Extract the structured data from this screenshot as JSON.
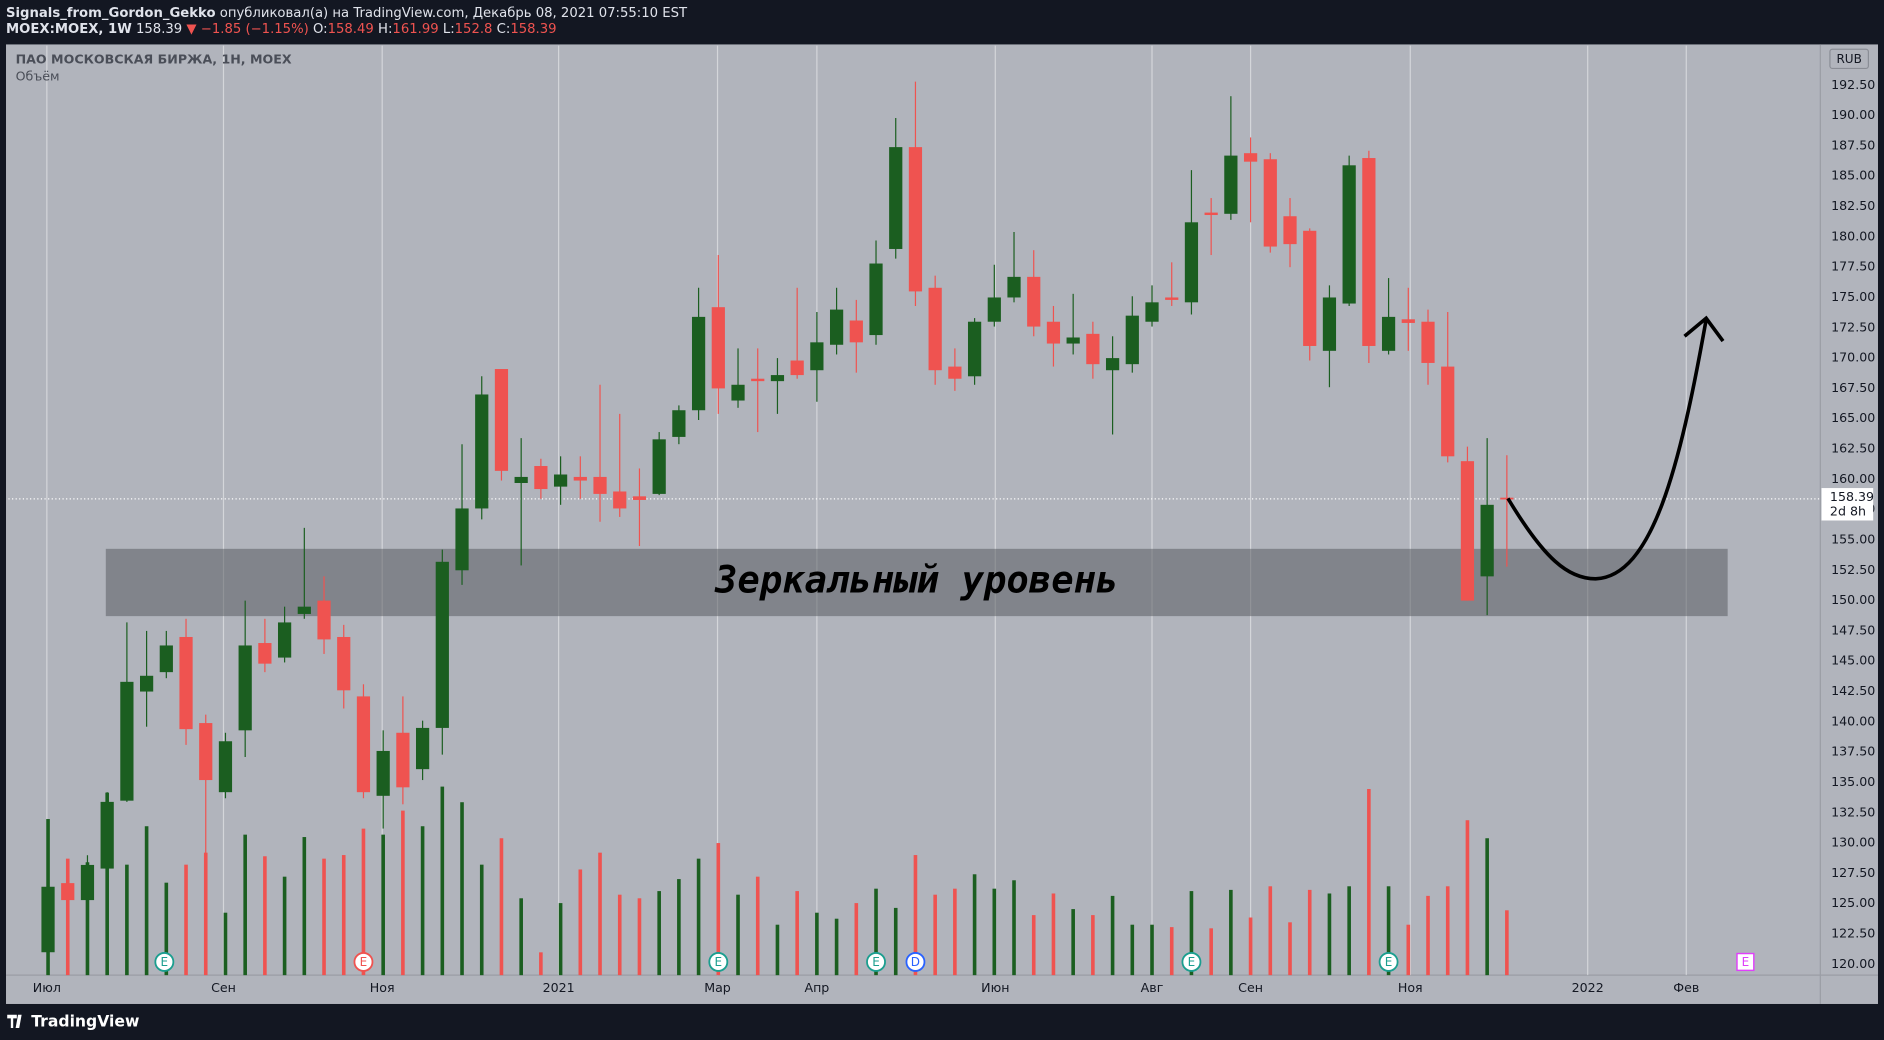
{
  "header": {
    "author": "Signals_from_Gordon_Gekko",
    "published": "опубликовал(а) на TradingView.com, Декабрь 08, 2021 07:55:10 EST",
    "symbol": "MOEX:MOEX, 1W",
    "change": "▼ −1.85 (−1.15%)",
    "o_label": "O:",
    "h_label": "H:",
    "l_label": "L:",
    "c_label": "C:",
    "currency": "RUB",
    "countdown": "2d 8h",
    "brand": "TradingView"
  },
  "chart_data": {
    "type": "candlestick",
    "title": "ПАО МОСКОВСКАЯ БИРЖА, 1Н, MOEX",
    "subtitle": "Объём",
    "up_color": "#1b5e20",
    "down_color": "#ef5350",
    "grid": true,
    "x": [
      0,
      1,
      2,
      3,
      4,
      5,
      6,
      7,
      8,
      9,
      10,
      11,
      12,
      13,
      14,
      15,
      16,
      17,
      18,
      19,
      20,
      21,
      22,
      23,
      24,
      25,
      26,
      27,
      28,
      29,
      30,
      31,
      32,
      33,
      34,
      35,
      36,
      37,
      38,
      39,
      40,
      41,
      42,
      43,
      44,
      45,
      46,
      47,
      48,
      49,
      50,
      51,
      52,
      53,
      54,
      55,
      56,
      57,
      58,
      59,
      60,
      61,
      62,
      63,
      64,
      65,
      66,
      67,
      68,
      69,
      70,
      71,
      72,
      73,
      74
    ],
    "open": [
      121,
      126.7,
      125.3,
      127.9,
      133.5,
      142.5,
      144.1,
      147.0,
      139.9,
      134.2,
      139.3,
      146.5,
      145.3,
      148.9,
      150.0,
      147.0,
      142.1,
      133.9,
      139.1,
      136.1,
      139.5,
      152.5,
      157.6,
      169.1,
      159.7,
      161.1,
      159.4,
      160.2,
      160.2,
      159.0,
      158.6,
      158.8,
      163.5,
      165.7,
      174.2,
      166.5,
      168.3,
      168.1,
      169.8,
      169.0,
      171.1,
      173.1,
      171.9,
      179.0,
      187.4,
      175.8,
      169.3,
      168.5,
      173.0,
      175.0,
      176.7,
      173.0,
      171.2,
      172.0,
      169.0,
      169.5,
      173.0,
      175.0,
      174.6,
      182.0,
      181.9,
      186.9,
      186.4,
      181.7,
      180.5,
      170.6,
      174.5,
      186.5,
      170.6,
      173.2,
      173.0,
      169.3,
      161.5,
      152.0,
      158.49
    ],
    "high": [
      127,
      128.6,
      129.0,
      134.2,
      148.2,
      147.5,
      147.5,
      148.5,
      140.6,
      139.1,
      150.0,
      148.5,
      149.5,
      156.0,
      152.0,
      148.0,
      143.1,
      139.3,
      142.1,
      140.1,
      154.2,
      162.9,
      168.5,
      169.1,
      163.4,
      161.7,
      161.9,
      161.9,
      167.8,
      165.4,
      160.9,
      163.9,
      166.1,
      175.8,
      178.5,
      170.8,
      170.8,
      170.0,
      175.8,
      173.8,
      175.8,
      174.8,
      179.7,
      189.8,
      192.8,
      176.8,
      170.8,
      173.3,
      177.7,
      180.4,
      178.9,
      174.3,
      175.3,
      173.0,
      171.8,
      175.1,
      176.0,
      177.9,
      185.5,
      183.2,
      191.6,
      188.2,
      186.9,
      183.2,
      180.7,
      176.0,
      186.7,
      187.1,
      176.6,
      175.8,
      174.0,
      173.8,
      162.7,
      163.4,
      161.99
    ],
    "low": [
      119.5,
      124.3,
      125.1,
      127.4,
      133.4,
      139.6,
      143.6,
      138.1,
      119.5,
      133.7,
      137.1,
      144.1,
      144.9,
      148.5,
      145.6,
      141.1,
      133.7,
      131.2,
      133.2,
      135.2,
      137.3,
      151.3,
      156.7,
      159.9,
      152.9,
      158.4,
      157.9,
      158.4,
      156.5,
      156.9,
      154.5,
      158.7,
      162.9,
      164.9,
      165.4,
      165.9,
      163.9,
      165.4,
      168.3,
      166.4,
      170.3,
      168.8,
      171.1,
      178.2,
      174.3,
      167.8,
      167.3,
      167.8,
      172.6,
      174.6,
      171.8,
      169.3,
      170.3,
      168.3,
      163.7,
      168.8,
      172.6,
      174.3,
      173.6,
      178.5,
      181.4,
      181.2,
      178.7,
      177.5,
      169.8,
      167.6,
      174.3,
      169.6,
      170.3,
      170.6,
      167.8,
      161.4,
      150.0,
      148.8,
      152.8
    ],
    "close": [
      126.4,
      125.3,
      128.2,
      133.4,
      143.3,
      143.8,
      146.3,
      139.4,
      135.2,
      138.4,
      146.3,
      144.8,
      148.2,
      149.5,
      146.8,
      142.6,
      134.2,
      137.6,
      134.6,
      139.5,
      153.2,
      157.6,
      167.0,
      160.7,
      160.2,
      159.2,
      160.4,
      159.9,
      158.8,
      157.6,
      158.3,
      163.3,
      165.7,
      173.4,
      167.5,
      167.8,
      168.1,
      168.6,
      168.6,
      171.3,
      174.0,
      171.3,
      177.8,
      187.4,
      175.5,
      169.0,
      168.3,
      173.0,
      175.0,
      176.7,
      172.6,
      171.2,
      171.7,
      169.5,
      170.0,
      173.5,
      174.6,
      174.8,
      181.2,
      181.8,
      186.7,
      186.2,
      179.2,
      179.4,
      171.0,
      175.0,
      185.9,
      171.0,
      173.4,
      172.9,
      169.6,
      161.9,
      150.0,
      157.9,
      158.39
    ],
    "volume": [
      130,
      97,
      94,
      152,
      92,
      124,
      77,
      92,
      102,
      52,
      117,
      99,
      82,
      115,
      97,
      100,
      122,
      117,
      137,
      124,
      157,
      144,
      92,
      114,
      64,
      19,
      60,
      88,
      102,
      67,
      64,
      70,
      80,
      97,
      110,
      67,
      82,
      42,
      70,
      52,
      47,
      60,
      72,
      56,
      100,
      67,
      72,
      84,
      72,
      79,
      50,
      68,
      55,
      50,
      66,
      42,
      42,
      40,
      70,
      39,
      71,
      48,
      74,
      44,
      71,
      68,
      74,
      155,
      74,
      42,
      66,
      74,
      129,
      114,
      54
    ],
    "xlim": [
      -2.01,
      89.9
    ],
    "xticks": [
      {
        "value": -0.06,
        "label": "Июл"
      },
      {
        "value": 8.9,
        "label": "Сен"
      },
      {
        "value": 16.95,
        "label": "Ноя"
      },
      {
        "value": 25.9,
        "label": "2021"
      },
      {
        "value": 33.96,
        "label": "Мар"
      },
      {
        "value": 39.0,
        "label": "Апр"
      },
      {
        "value": 48.05,
        "label": "Июн"
      },
      {
        "value": 56.0,
        "label": "Авг"
      },
      {
        "value": 61.0,
        "label": "Сен"
      },
      {
        "value": 69.1,
        "label": "Ноя"
      },
      {
        "value": 78.1,
        "label": "2022"
      },
      {
        "value": 83.1,
        "label": "Фев"
      }
    ],
    "ylim": [
      119.11,
      195.77
    ],
    "yticks": [
      {
        "value": 120,
        "label": "120.00"
      },
      {
        "value": 122.5,
        "label": "122.50"
      },
      {
        "value": 125,
        "label": "125.00"
      },
      {
        "value": 127.5,
        "label": "127.50"
      },
      {
        "value": 130,
        "label": "130.00"
      },
      {
        "value": 132.5,
        "label": "132.50"
      },
      {
        "value": 135,
        "label": "135.00"
      },
      {
        "value": 137.5,
        "label": "137.50"
      },
      {
        "value": 140,
        "label": "140.00"
      },
      {
        "value": 142.5,
        "label": "142.50"
      },
      {
        "value": 145,
        "label": "145.00"
      },
      {
        "value": 147.5,
        "label": "147.50"
      },
      {
        "value": 150,
        "label": "150.00"
      },
      {
        "value": 152.5,
        "label": "152.50"
      },
      {
        "value": 155,
        "label": "155.00"
      },
      {
        "value": 157.5,
        "label": "157.50"
      },
      {
        "value": 160,
        "label": "160.00"
      },
      {
        "value": 162.5,
        "label": "162.50"
      },
      {
        "value": 165,
        "label": "165.00"
      },
      {
        "value": 167.5,
        "label": "167.50"
      },
      {
        "value": 170,
        "label": "170.00"
      },
      {
        "value": 172.5,
        "label": "172.50"
      },
      {
        "value": 175,
        "label": "175.00"
      },
      {
        "value": 177.5,
        "label": "177.50"
      },
      {
        "value": 180,
        "label": "180.00"
      },
      {
        "value": 182.5,
        "label": "182.50"
      },
      {
        "value": 185,
        "label": "185.00"
      },
      {
        "value": 187.5,
        "label": "187.50"
      },
      {
        "value": 190,
        "label": "190.00"
      },
      {
        "value": 192.5,
        "label": "192.50"
      }
    ],
    "zone": {
      "label": "Зеркальный уровень",
      "x": [
        2.93,
        85.2
      ],
      "y": [
        148.72,
        154.27
      ]
    },
    "events": [
      {
        "x": 5.9,
        "label": "E",
        "color": "#1b9e8f"
      },
      {
        "x": 16.0,
        "label": "E",
        "color": "#ef5350"
      },
      {
        "x": 34.0,
        "label": "E",
        "color": "#1b9e8f"
      },
      {
        "x": 42.0,
        "label": "E",
        "color": "#1b9e8f"
      },
      {
        "x": 44.0,
        "label": "D",
        "color": "#2962ff"
      },
      {
        "x": 58.0,
        "label": "E",
        "color": "#1b9e8f"
      },
      {
        "x": 68.0,
        "label": "E",
        "color": "#1b9e8f"
      },
      {
        "x": 86.1,
        "label": "E",
        "color": "#e040fb"
      }
    ]
  }
}
